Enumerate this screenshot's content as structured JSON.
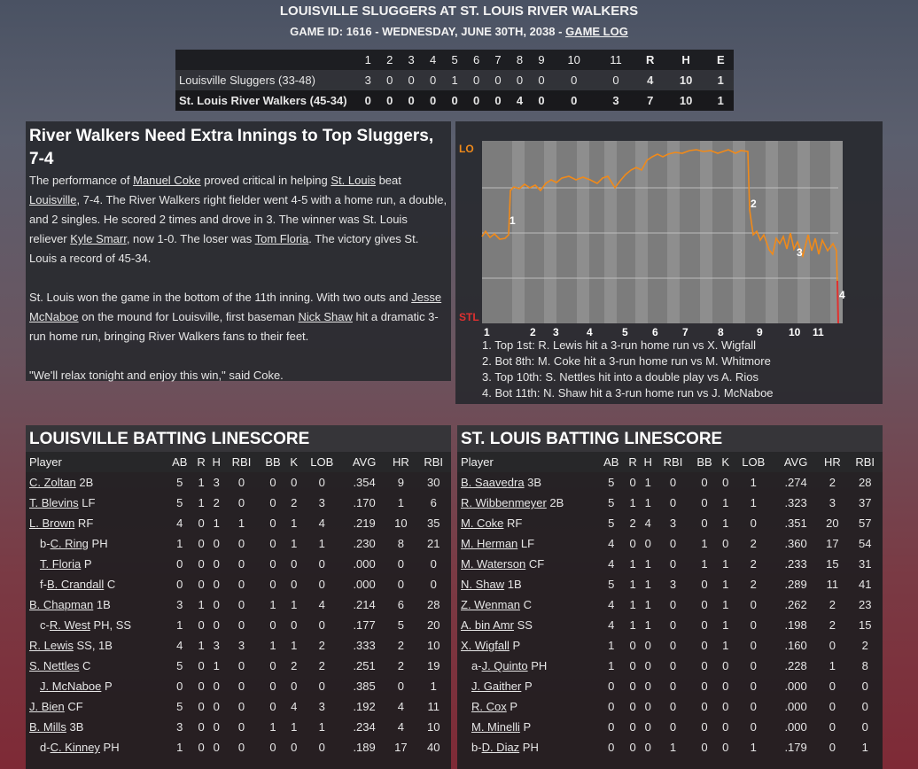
{
  "header": {
    "title": "LOUISVILLE SLUGGERS AT ST. LOUIS RIVER WALKERS",
    "subtitle": "GAME ID: 1616 - WEDNESDAY, JUNE 30TH, 2038 -",
    "game_log_link": "GAME LOG"
  },
  "linescore": {
    "innings": [
      "1",
      "2",
      "3",
      "4",
      "5",
      "6",
      "7",
      "8",
      "9",
      "10",
      "11"
    ],
    "totals_headers": [
      "R",
      "H",
      "E"
    ],
    "teams": [
      {
        "name": "Louisville Sluggers (33-48)",
        "innings": [
          "3",
          "0",
          "0",
          "0",
          "1",
          "0",
          "0",
          "0",
          "0",
          "0",
          "0"
        ],
        "totals": [
          "4",
          "10",
          "1"
        ]
      },
      {
        "name": "St. Louis River Walkers (45-34)",
        "innings": [
          "0",
          "0",
          "0",
          "0",
          "0",
          "0",
          "0",
          "4",
          "0",
          "0",
          "3"
        ],
        "totals": [
          "7",
          "10",
          "1"
        ]
      }
    ]
  },
  "story": {
    "headline": "River Walkers Need Extra Innings to Top Sluggers, 7-4",
    "p1": [
      "The performance of ",
      "Manuel Coke",
      " proved critical in helping ",
      "St. Louis",
      " beat ",
      "Louisville",
      ", 7-4. The River Walkers right fielder went 4-5 with a home run, a double, and 2 singles. He scored 2 times and drove in 3. The winner was St. Louis reliever ",
      "Kyle Smarr",
      ", now 1-0. The loser was ",
      "Tom Floria",
      ". The victory gives St. Louis a record of 45-34."
    ],
    "p2": [
      "St. Louis won the game in the bottom of the 11th inning. With two outs and ",
      "Jesse McNaboe",
      " on the mound for Louisville, first baseman ",
      "Nick Shaw",
      " hit a dramatic 3-run home run, bringing River Walkers fans to their feet."
    ],
    "p3": "\"We'll relax tonight and enjoy this win,\" said Coke."
  },
  "chart_data": {
    "type": "line",
    "top_label": "LO",
    "bottom_label": "STL",
    "x_labels": [
      "1",
      "2",
      "3",
      "4",
      "5",
      "6",
      "7",
      "8",
      "9",
      "10",
      "11"
    ],
    "y_label_values": [
      "LO",
      "STL"
    ],
    "line_color": "#f08a1a",
    "lo_color": "#f08a1a",
    "stl_color": "#e03030",
    "markers": [
      "1",
      "2",
      "3",
      "4"
    ],
    "notes": [
      "1. Top 1st: R. Lewis hit a 3-run home run vs X. Wigfall",
      "2. Bot 8th: M. Coke hit a 3-run home run vs M. Whitmore",
      "3. Top 10th: S. Nettles hit into a double play vs A. Rios",
      "4. Bot 11th: N. Shaw hit a 3-run home run vs J. McNaboe"
    ]
  },
  "batting": {
    "columns": [
      "Player",
      "AB",
      "R",
      "H",
      "RBI",
      "BB",
      "K",
      "LOB",
      "AVG",
      "HR",
      "RBI"
    ],
    "louisville": {
      "title": "LOUISVILLE BATTING LINESCORE",
      "rows": [
        {
          "prefix": "",
          "name": "C. Zoltan",
          "pos": " 2B",
          "stats": [
            "5",
            "1",
            "3",
            "0",
            "0",
            "0",
            "0",
            ".354",
            "9",
            "30"
          ]
        },
        {
          "prefix": "",
          "name": "T. Blevins",
          "pos": " LF",
          "stats": [
            "5",
            "1",
            "2",
            "0",
            "0",
            "2",
            "3",
            ".170",
            "1",
            "6"
          ]
        },
        {
          "prefix": "",
          "name": "L. Brown",
          "pos": " RF",
          "stats": [
            "4",
            "0",
            "1",
            "1",
            "0",
            "1",
            "4",
            ".219",
            "10",
            "35"
          ]
        },
        {
          "prefix": "b-",
          "name": "C. Ring",
          "pos": " PH",
          "stats": [
            "1",
            "0",
            "0",
            "0",
            "0",
            "1",
            "1",
            ".230",
            "8",
            "21"
          ]
        },
        {
          "prefix": "",
          "name": "T. Floria",
          "pos": " P",
          "sub": true,
          "stats": [
            "0",
            "0",
            "0",
            "0",
            "0",
            "0",
            "0",
            ".000",
            "0",
            "0"
          ]
        },
        {
          "prefix": "f-",
          "name": "B. Crandall",
          "pos": " C",
          "stats": [
            "0",
            "0",
            "0",
            "0",
            "0",
            "0",
            "0",
            ".000",
            "0",
            "0"
          ]
        },
        {
          "prefix": "",
          "name": "B. Chapman",
          "pos": " 1B",
          "stats": [
            "3",
            "1",
            "0",
            "0",
            "1",
            "1",
            "4",
            ".214",
            "6",
            "28"
          ]
        },
        {
          "prefix": "c-",
          "name": "R. West",
          "pos": " PH, SS",
          "stats": [
            "1",
            "0",
            "0",
            "0",
            "0",
            "0",
            "0",
            ".177",
            "5",
            "20"
          ]
        },
        {
          "prefix": "",
          "name": "R. Lewis",
          "pos": " SS, 1B",
          "stats": [
            "4",
            "1",
            "3",
            "3",
            "1",
            "1",
            "2",
            ".333",
            "2",
            "10"
          ]
        },
        {
          "prefix": "",
          "name": "S. Nettles",
          "pos": " C",
          "stats": [
            "5",
            "0",
            "1",
            "0",
            "0",
            "2",
            "2",
            ".251",
            "2",
            "19"
          ]
        },
        {
          "prefix": "",
          "name": "J. McNaboe",
          "pos": " P",
          "sub": true,
          "stats": [
            "0",
            "0",
            "0",
            "0",
            "0",
            "0",
            "0",
            ".385",
            "0",
            "1"
          ]
        },
        {
          "prefix": "",
          "name": "J. Bien",
          "pos": " CF",
          "stats": [
            "5",
            "0",
            "0",
            "0",
            "0",
            "4",
            "3",
            ".192",
            "4",
            "11"
          ]
        },
        {
          "prefix": "",
          "name": "B. Mills",
          "pos": " 3B",
          "stats": [
            "3",
            "0",
            "0",
            "0",
            "1",
            "1",
            "1",
            ".234",
            "4",
            "10"
          ]
        },
        {
          "prefix": "d-",
          "name": "C. Kinney",
          "pos": " PH",
          "stats": [
            "1",
            "0",
            "0",
            "0",
            "0",
            "0",
            "0",
            ".189",
            "17",
            "40"
          ]
        }
      ]
    },
    "stlouis": {
      "title": "ST. LOUIS BATTING LINESCORE",
      "rows": [
        {
          "prefix": "",
          "name": "B. Saavedra",
          "pos": " 3B",
          "stats": [
            "5",
            "0",
            "1",
            "0",
            "0",
            "0",
            "1",
            ".274",
            "2",
            "28"
          ]
        },
        {
          "prefix": "",
          "name": "R. Wibbenmeyer",
          "pos": " 2B",
          "stats": [
            "5",
            "1",
            "1",
            "0",
            "0",
            "1",
            "1",
            ".323",
            "3",
            "37"
          ]
        },
        {
          "prefix": "",
          "name": "M. Coke",
          "pos": " RF",
          "stats": [
            "5",
            "2",
            "4",
            "3",
            "0",
            "1",
            "0",
            ".351",
            "20",
            "57"
          ]
        },
        {
          "prefix": "",
          "name": "M. Herman",
          "pos": " LF",
          "stats": [
            "4",
            "0",
            "0",
            "0",
            "1",
            "0",
            "2",
            ".360",
            "17",
            "54"
          ]
        },
        {
          "prefix": "",
          "name": "M. Waterson",
          "pos": " CF",
          "stats": [
            "4",
            "1",
            "1",
            "0",
            "1",
            "1",
            "2",
            ".233",
            "15",
            "31"
          ]
        },
        {
          "prefix": "",
          "name": "N. Shaw",
          "pos": " 1B",
          "stats": [
            "5",
            "1",
            "1",
            "3",
            "0",
            "1",
            "2",
            ".289",
            "11",
            "41"
          ]
        },
        {
          "prefix": "",
          "name": "Z. Wenman",
          "pos": " C",
          "stats": [
            "4",
            "1",
            "1",
            "0",
            "0",
            "1",
            "0",
            ".262",
            "2",
            "23"
          ]
        },
        {
          "prefix": "",
          "name": "A. bin Amr",
          "pos": " SS",
          "stats": [
            "4",
            "1",
            "1",
            "0",
            "0",
            "1",
            "0",
            ".198",
            "2",
            "15"
          ]
        },
        {
          "prefix": "",
          "name": "X. Wigfall",
          "pos": " P",
          "stats": [
            "1",
            "0",
            "0",
            "0",
            "0",
            "1",
            "0",
            ".160",
            "0",
            "2"
          ]
        },
        {
          "prefix": "a-",
          "name": "J. Quinto",
          "pos": " PH",
          "stats": [
            "1",
            "0",
            "0",
            "0",
            "0",
            "0",
            "0",
            ".228",
            "1",
            "8"
          ]
        },
        {
          "prefix": "",
          "name": "J. Gaither",
          "pos": " P",
          "sub": true,
          "stats": [
            "0",
            "0",
            "0",
            "0",
            "0",
            "0",
            "0",
            ".000",
            "0",
            "0"
          ]
        },
        {
          "prefix": "",
          "name": "R. Cox",
          "pos": " P",
          "sub": true,
          "stats": [
            "0",
            "0",
            "0",
            "0",
            "0",
            "0",
            "0",
            ".000",
            "0",
            "0"
          ]
        },
        {
          "prefix": "",
          "name": "M. Minelli",
          "pos": " P",
          "sub": true,
          "stats": [
            "0",
            "0",
            "0",
            "0",
            "0",
            "0",
            "0",
            ".000",
            "0",
            "0"
          ]
        },
        {
          "prefix": "b-",
          "name": "D. Diaz",
          "pos": " PH",
          "stats": [
            "0",
            "0",
            "0",
            "1",
            "0",
            "0",
            "1",
            ".179",
            "0",
            "1"
          ]
        }
      ]
    }
  }
}
